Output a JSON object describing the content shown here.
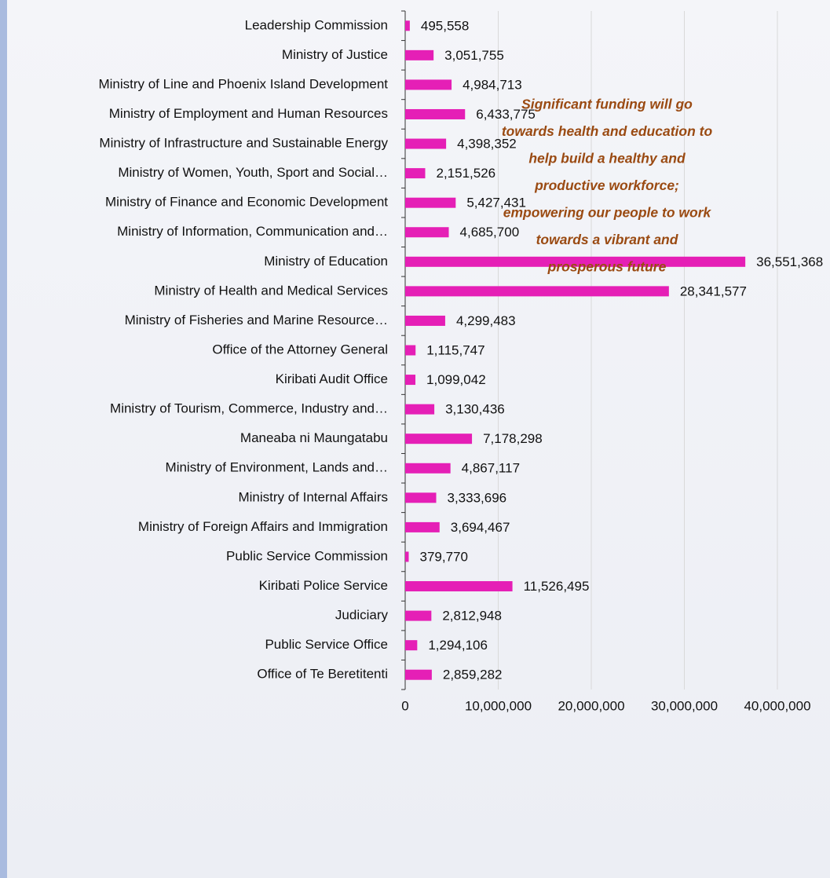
{
  "chart_data": {
    "type": "barh",
    "categories": [
      "Leadership Commission",
      "Ministry of Justice",
      "Ministry of Line and Phoenix Island Development",
      "Ministry of Employment and Human Resources",
      "Ministry of Infrastructure and Sustainable Energy",
      "Ministry of Women, Youth, Sport and Social…",
      "Ministry of Finance and Economic Development",
      "Ministry of Information, Communication and…",
      "Ministry of Education",
      "Ministry of Health and Medical Services",
      "Ministry of Fisheries and Marine Resource…",
      "Office of the Attorney General",
      "Kiribati Audit Office",
      "Ministry of Tourism, Commerce, Industry and…",
      "Maneaba ni Maungatabu",
      "Ministry of Environment, Lands and…",
      "Ministry of Internal Affairs",
      "Ministry of Foreign Affairs and Immigration",
      "Public Service Commission",
      "Kiribati Police Service",
      "Judiciary",
      "Public Service Office",
      "Office of Te Beretitenti"
    ],
    "values": [
      495558,
      3051755,
      4984713,
      6433775,
      4398352,
      2151526,
      5427431,
      4685700,
      36551368,
      28341577,
      4299483,
      1115747,
      1099042,
      3130436,
      7178298,
      4867117,
      3333696,
      3694467,
      379770,
      11526495,
      2812948,
      1294106,
      2859282
    ],
    "value_labels": [
      "495,558",
      "3,051,755",
      "4,984,713",
      "6,433,775",
      "4,398,352",
      "2,151,526",
      "5,427,431",
      "4,685,700",
      "36,551,368",
      "28,341,577",
      "4,299,483",
      "1,115,747",
      "1,099,042",
      "3,130,436",
      "7,178,298",
      "4,867,117",
      "3,333,696",
      "3,694,467",
      "379,770",
      "11,526,495",
      "2,812,948",
      "1,294,106",
      "2,859,282"
    ],
    "color": "#e51fb6",
    "xlim": [
      0,
      40000000
    ],
    "xticks": [
      0,
      {
        "value": 10000000,
        "label": "10,000,000"
      },
      {
        "value": 20000000,
        "label": "20,000,000"
      },
      {
        "value": 30000000,
        "label": "30,000,000"
      },
      {
        "value": 40000000,
        "label": "40,000,000"
      }
    ],
    "grid": true,
    "annotation": [
      "Significant funding will go",
      "towards health and education to",
      "help build a healthy and",
      "productive workforce;",
      "empowering our people to work",
      "towards a vibrant and",
      "prosperous future"
    ]
  }
}
